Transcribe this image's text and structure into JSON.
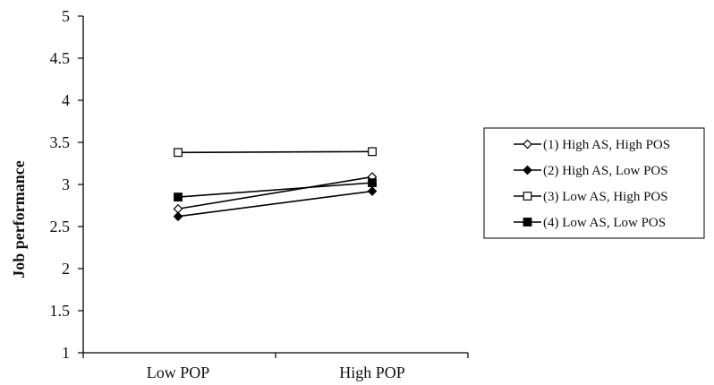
{
  "chart_data": {
    "type": "line",
    "categories": [
      "Low POP",
      "High POP"
    ],
    "ylabel": "Job performance",
    "xlabel": "",
    "ylim": [
      1,
      5
    ],
    "yticks": [
      "1",
      "1.5",
      "2",
      "2.5",
      "3",
      "3.5",
      "4",
      "4.5",
      "5"
    ],
    "grid": false,
    "legend_position": "right",
    "series": [
      {
        "name": "(1) High AS, High POS",
        "marker": "diamond-open",
        "values": [
          2.71,
          3.09
        ]
      },
      {
        "name": "(2) High AS, Low POS",
        "marker": "diamond-filled",
        "values": [
          2.62,
          2.92
        ]
      },
      {
        "name": "(3) Low AS, High POS",
        "marker": "square-open",
        "values": [
          3.38,
          3.39
        ]
      },
      {
        "name": "(4) Low AS, Low POS",
        "marker": "square-filled",
        "values": [
          2.85,
          3.02
        ]
      }
    ]
  }
}
